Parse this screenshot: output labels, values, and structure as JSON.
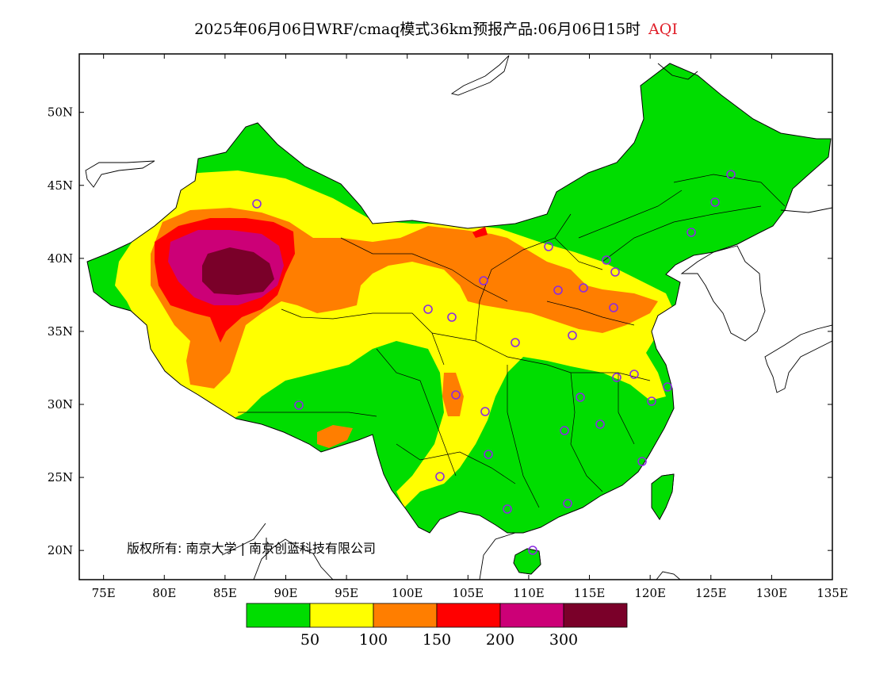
{
  "title": {
    "main": "2025年06月06日WRF/cmaq模式36km预报产品:06月06日15时",
    "variable": "AQI",
    "variable_color": "#e0202a"
  },
  "map": {
    "lon_ticks": [
      "75E",
      "80E",
      "85E",
      "90E",
      "95E",
      "100E",
      "105E",
      "110E",
      "115E",
      "120E",
      "125E",
      "130E",
      "135E"
    ],
    "lat_ticks": [
      "50N",
      "45N",
      "40N",
      "35N",
      "30N",
      "25N",
      "20N"
    ],
    "lon_range": [
      73,
      135
    ],
    "lat_range": [
      18,
      54
    ],
    "copyright": "版权所有: 南京大学 | 南京创蓝科技有限公司"
  },
  "legend": {
    "colors": [
      "#00dd00",
      "#ffff00",
      "#ff7e00",
      "#ff0000",
      "#cc0077",
      "#7a0029"
    ],
    "labels": [
      "50",
      "100",
      "150",
      "200",
      "300"
    ]
  }
}
